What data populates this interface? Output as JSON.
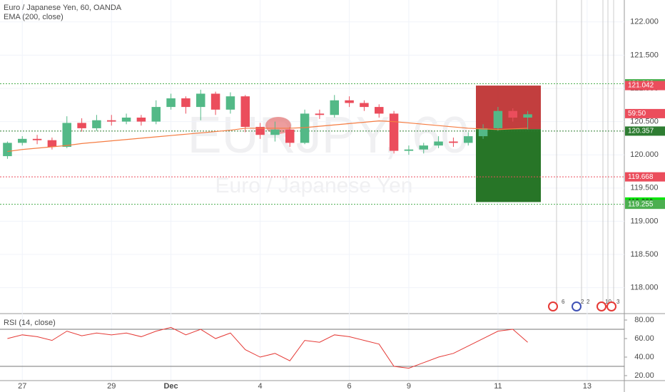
{
  "chart_data": {
    "type": "candlestick",
    "title": "Euro / Japanese Yen, 60, OANDA",
    "watermark": "EURJPY, 60",
    "watermark_sub": "Euro / Japanese Yen",
    "categories": [
      null,
      "27",
      null,
      null,
      null,
      null,
      null,
      "29",
      null,
      null,
      null,
      "Dec",
      null,
      null,
      null,
      null,
      null,
      "4",
      null,
      null,
      null,
      null,
      null,
      "6",
      null,
      null,
      null,
      "9",
      null,
      null,
      null,
      null,
      null,
      "11",
      null,
      null,
      null,
      null,
      null,
      "13",
      null,
      null
    ],
    "open": [
      119.98,
      120.18,
      120.24,
      120.22,
      120.12,
      120.48,
      120.4,
      120.52,
      120.5,
      120.56,
      120.5,
      120.72,
      120.85,
      120.72,
      120.92,
      120.68,
      120.88,
      120.42,
      120.3,
      120.38,
      120.18,
      120.62,
      120.6,
      120.82,
      120.78,
      120.72,
      120.62,
      120.06,
      120.08,
      120.14,
      120.2,
      120.18,
      120.28,
      120.4,
      120.66,
      120.56,
      null,
      null,
      null,
      null,
      null,
      null
    ],
    "high": [
      120.2,
      120.28,
      120.3,
      120.26,
      120.58,
      120.55,
      120.6,
      120.6,
      120.62,
      120.6,
      120.82,
      120.92,
      120.88,
      120.98,
      120.95,
      120.94,
      120.9,
      120.48,
      120.5,
      120.42,
      120.68,
      120.68,
      120.9,
      120.88,
      120.82,
      120.76,
      120.66,
      120.14,
      120.18,
      120.28,
      120.26,
      120.34,
      120.46,
      120.72,
      120.7,
      120.66,
      null,
      null,
      null,
      null,
      null,
      null
    ],
    "low": [
      119.94,
      120.14,
      120.16,
      120.08,
      120.1,
      120.35,
      120.36,
      120.44,
      120.46,
      120.44,
      120.46,
      120.68,
      120.62,
      120.52,
      120.6,
      120.62,
      120.34,
      120.24,
      120.2,
      120.12,
      120.16,
      120.54,
      120.56,
      120.72,
      120.66,
      120.56,
      120.02,
      120.0,
      120.02,
      120.1,
      120.12,
      120.14,
      120.24,
      120.36,
      120.5,
      120.38,
      null,
      null,
      null,
      null,
      null,
      null
    ],
    "close": [
      120.18,
      120.24,
      120.22,
      120.12,
      120.48,
      120.4,
      120.52,
      120.5,
      120.56,
      120.5,
      120.72,
      120.85,
      120.72,
      120.92,
      120.68,
      120.88,
      120.42,
      120.3,
      120.38,
      120.18,
      120.62,
      120.6,
      120.82,
      120.78,
      120.72,
      120.62,
      120.06,
      120.08,
      120.14,
      120.2,
      120.18,
      120.28,
      120.4,
      120.66,
      120.56,
      120.61,
      null,
      null,
      null,
      null,
      null,
      null
    ],
    "up_color": "#53b987",
    "down_color": "#eb4d5c",
    "series": [
      {
        "name": "EMA (200, close)",
        "color": "#f57c42",
        "values": [
          120.05,
          120.08,
          120.1,
          120.12,
          120.14,
          120.17,
          120.19,
          120.21,
          120.23,
          120.25,
          120.27,
          120.29,
          120.31,
          120.33,
          120.35,
          120.37,
          120.4,
          120.4,
          120.4,
          120.4,
          120.41,
          120.43,
          120.45,
          120.47,
          120.49,
          120.51,
          120.5,
          120.48,
          120.46,
          120.44,
          120.42,
          120.4,
          120.39,
          120.38,
          120.39,
          120.4,
          null,
          null,
          null,
          null,
          null,
          null
        ]
      }
    ],
    "ylim": [
      117.61,
      122.33
    ],
    "yticks": [
      {
        "value": 122,
        "label": "122.000"
      },
      {
        "value": 121.5,
        "label": "121.500"
      },
      {
        "value": 121,
        "label": "121.000"
      },
      {
        "value": 120.5,
        "label": "120.500"
      },
      {
        "value": 120,
        "label": "120.000"
      },
      {
        "value": 119.5,
        "label": "119.500"
      },
      {
        "value": 119,
        "label": "119.000"
      },
      {
        "value": 118.5,
        "label": "118.500"
      },
      {
        "value": 118,
        "label": "118.000"
      }
    ],
    "levels": [
      {
        "value": 121.069,
        "label": "121.069",
        "color": "#4caf50",
        "line": true
      },
      {
        "value": 121.042,
        "label": "121.042",
        "color": "#eb4d5c",
        "line": false
      },
      {
        "value": 120.62,
        "label": "59:50",
        "color": "#eb4d5c",
        "line": false
      },
      {
        "value": 120.357,
        "label": "120.357",
        "color": "#2e7d32",
        "line": true
      },
      {
        "value": 119.668,
        "label": "119.668",
        "color": "#eb4d5c",
        "line": true
      },
      {
        "value": 119.289,
        "label": "119.289",
        "color": "#00e600",
        "line": false
      },
      {
        "value": 119.255,
        "label": "119.255",
        "color": "#4caf50",
        "line": true
      }
    ],
    "position": {
      "top": 121.042,
      "entry": 120.386,
      "bottom": 119.289
    },
    "events": [
      "6",
      "2",
      "2",
      "10",
      "3"
    ],
    "rsi": {
      "title": "RSI (14, close)",
      "color": "#e53935",
      "values": [
        60,
        64,
        62,
        58,
        68,
        63,
        66,
        64,
        66,
        62,
        68,
        72,
        64,
        70,
        60,
        66,
        48,
        40,
        44,
        36,
        58,
        56,
        64,
        62,
        58,
        54,
        30,
        28,
        34,
        40,
        44,
        52,
        60,
        68,
        70,
        56,
        null,
        null,
        null,
        null,
        null,
        null
      ],
      "ylim": [
        15.4,
        85.4
      ],
      "yticks": [
        {
          "value": 80,
          "label": "80.00"
        },
        {
          "value": 60,
          "label": "60.00"
        },
        {
          "value": 40,
          "label": "40.00"
        },
        {
          "value": 20,
          "label": "20.00"
        }
      ],
      "bands": [
        70,
        30
      ]
    }
  }
}
